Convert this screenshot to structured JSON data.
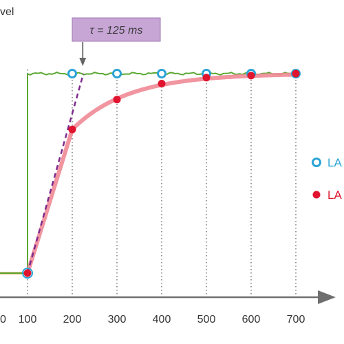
{
  "chart_data": {
    "type": "line",
    "ylabel": "vel",
    "x_ticks": [
      100,
      200,
      300,
      400,
      500,
      600,
      700
    ],
    "xlim": [
      40,
      760
    ],
    "ylim": [
      0,
      1.0
    ],
    "grid": "vertical dotted lines at x ticks",
    "series": [
      {
        "name": "LA",
        "kind": "step-target",
        "color": "#5aa832",
        "points": [
          [
            40,
            0
          ],
          [
            100,
            0
          ],
          [
            100,
            1.0
          ],
          [
            700,
            1.0
          ]
        ]
      },
      {
        "name": "",
        "kind": "response-curve",
        "color": "#f08a96",
        "time_constant_ms": 125,
        "start_x": 100,
        "x_range": [
          100,
          700
        ]
      },
      {
        "name": "LA",
        "kind": "markers-open",
        "color": "#2aa3d6",
        "x": [
          200,
          300,
          400,
          500,
          600,
          700
        ],
        "y": [
          1.0,
          1.0,
          1.0,
          1.0,
          1.0,
          1.0
        ]
      },
      {
        "name": "LA",
        "kind": "markers-filled",
        "color": "#e0142e",
        "x": [
          100,
          200,
          300,
          400,
          500,
          600,
          700
        ],
        "y": [
          0.0,
          0.72,
          0.87,
          0.95,
          0.98,
          0.99,
          1.0
        ]
      }
    ],
    "baseline": {
      "color": "#d9852a",
      "x": [
        40,
        100
      ],
      "y": 0
    },
    "tangent": {
      "color": "#7d2a8c",
      "style": "dashed",
      "from": [
        100,
        0
      ],
      "to": [
        225,
        1.0
      ]
    },
    "annotation": {
      "text": "τ = 125 ms",
      "points_to_x": 225,
      "box_color": "#c7a6d6"
    },
    "legend": {
      "placement": "right",
      "entries": [
        {
          "label": "LA",
          "marker": "open-circle",
          "color": "#2aa3d6"
        },
        {
          "label": "LA",
          "marker": "filled-circle",
          "color": "#e0142e"
        }
      ]
    }
  }
}
